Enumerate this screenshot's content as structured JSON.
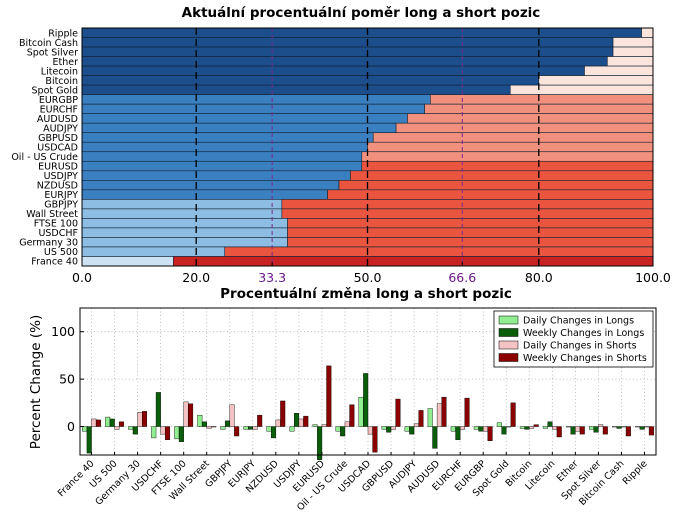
{
  "chart_data": [
    {
      "type": "bar",
      "orientation": "horizontal",
      "stacked": true,
      "title": "Aktuální procentuální poměr long a short pozic",
      "categories": [
        "Ripple",
        "Bitcoin Cash",
        "Spot Silver",
        "Ether",
        "Litecoin",
        "Bitcoin",
        "Spot Gold",
        "EURGBP",
        "EURCHF",
        "AUDUSD",
        "AUDJPY",
        "GBPUSD",
        "USDCAD",
        "Oil - US Crude",
        "EURUSD",
        "USDJPY",
        "NZDUSD",
        "EURJPY",
        "GBPJPY",
        "Wall Street",
        "FTSE 100",
        "USDCHF",
        "Germany 30",
        "US 500",
        "France 40"
      ],
      "long_pct": [
        98,
        93,
        93,
        92,
        88,
        80,
        75,
        61,
        60,
        57,
        55,
        51,
        50,
        49,
        49,
        47,
        45,
        43,
        35,
        35,
        36,
        36,
        36,
        25,
        16
      ],
      "xlim": [
        0,
        100
      ],
      "xticks": [
        "0.0",
        "20.0",
        "33.3",
        "50.0",
        "66.6",
        "80.0",
        "100.0"
      ],
      "tick_values": [
        0,
        20,
        33.3,
        50,
        66.6,
        80,
        100
      ],
      "highlight_ticks": [
        "33.3",
        "66.6"
      ],
      "colors": {
        "long_dark": "#1c4e8c",
        "long_mid": "#3a7fc0",
        "long_light": "#8dbde3",
        "long_pale": "#cde2f3",
        "short_pale": "#fbe4dc",
        "short_light": "#f1907c",
        "short_mid": "#e9553f",
        "short_dark": "#c92222",
        "guide_line": "#7a2a8c"
      }
    },
    {
      "type": "bar",
      "title": "Procentuální změna long a short pozic",
      "ylabel": "Percent Change (%)",
      "ylim": [
        -30,
        125
      ],
      "yticks": [
        0,
        50,
        100
      ],
      "categories": [
        "France 40",
        "US 500",
        "Germany 30",
        "USDCHF",
        "FTSE 100",
        "Wall Street",
        "GBPJPY",
        "EURJPY",
        "NZDUSD",
        "USDJPY",
        "EURUSD",
        "Oil - US Crude",
        "USDCAD",
        "GBPUSD",
        "AUDJPY",
        "AUDUSD",
        "EURCHF",
        "EURGBP",
        "Spot Gold",
        "Bitcoin",
        "Litecoin",
        "Ether",
        "Spot Silver",
        "Bitcoin Cash",
        "Ripple"
      ],
      "series": [
        {
          "name": "Daily Changes in Longs",
          "color": "#90ee90",
          "values": [
            -5,
            10,
            -3,
            -12,
            -13,
            12,
            -3,
            -3,
            -5,
            -5,
            2,
            -5,
            31,
            -3,
            -5,
            19,
            -5,
            -3,
            4,
            -2,
            -2,
            0,
            -3,
            0,
            0
          ]
        },
        {
          "name": "Weekly Changes in Longs",
          "color": "#0a5e0a",
          "values": [
            -28,
            8,
            -8,
            36,
            -16,
            5,
            6,
            -3,
            -12,
            14,
            -35,
            -10,
            56,
            -6,
            -8,
            -23,
            -14,
            -5,
            -8,
            -3,
            5,
            -8,
            -6,
            -2,
            -3
          ]
        },
        {
          "name": "Daily Changes in Shorts",
          "color": "#f4c2c2",
          "values": [
            8,
            -3,
            15,
            -8,
            26,
            -2,
            23,
            -3,
            7,
            8,
            2,
            5,
            -8,
            -3,
            3,
            24,
            -3,
            -5,
            0,
            -2,
            -3,
            -5,
            2,
            0,
            0
          ]
        },
        {
          "name": "Weekly Changes in Shorts",
          "color": "#8b0000",
          "values": [
            7,
            5,
            16,
            -14,
            24,
            0,
            -10,
            12,
            27,
            11,
            64,
            23,
            -27,
            29,
            17,
            31,
            30,
            -15,
            25,
            2,
            -11,
            -8,
            -8,
            -10,
            -9
          ]
        }
      ]
    }
  ]
}
